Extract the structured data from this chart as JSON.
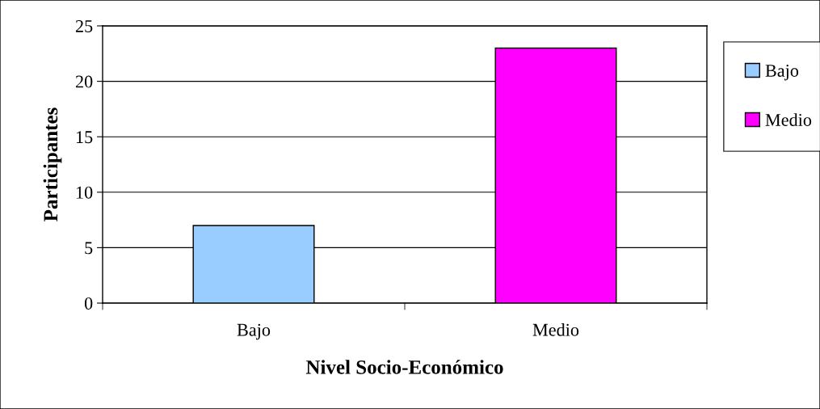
{
  "chart_data": {
    "type": "bar",
    "xlabel": "Nivel Socio-Económico",
    "ylabel": "Participantes",
    "categories": [
      "Bajo",
      "Medio"
    ],
    "series": [
      {
        "name": "Bajo",
        "color": "#99ccff",
        "values": [
          7,
          null
        ]
      },
      {
        "name": "Medio",
        "color": "#ff00ff",
        "values": [
          null,
          23
        ]
      }
    ],
    "ylim": [
      0,
      25
    ],
    "yticks": [
      0,
      5,
      10,
      15,
      20,
      25
    ],
    "grid": "y",
    "legend": "right"
  }
}
